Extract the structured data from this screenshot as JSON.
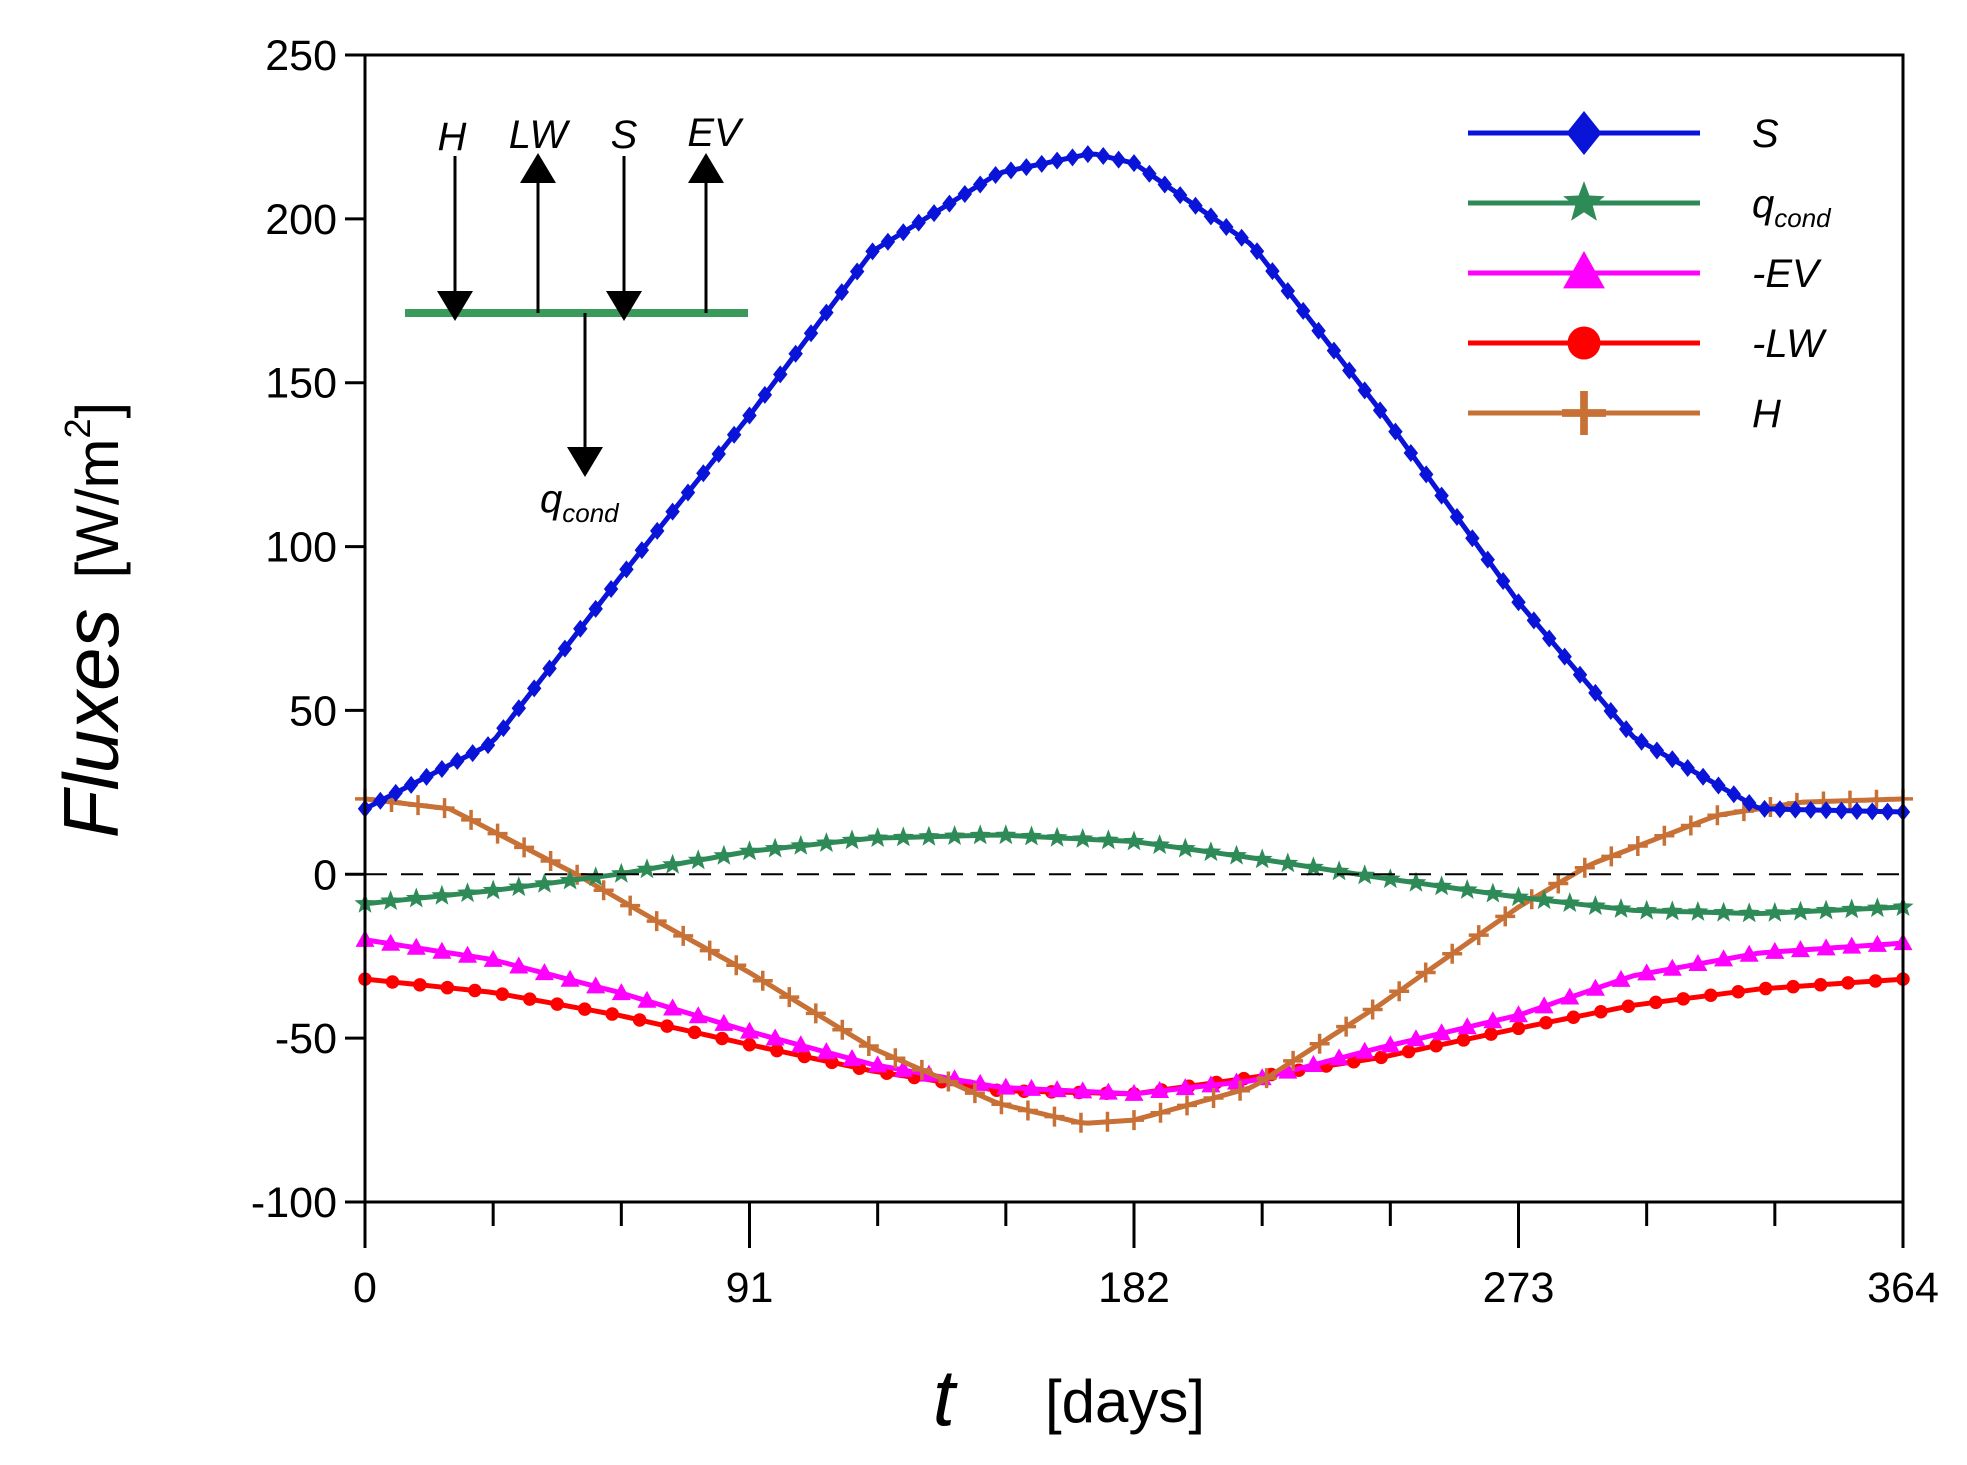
{
  "chart_data": {
    "type": "line",
    "xlabel_var": "t",
    "xlabel_unit": "[days]",
    "ylabel_var": "Fluxes",
    "ylabel_unit_pre": "[W/m",
    "ylabel_unit_sup": "2",
    "ylabel_unit_post": "]",
    "xlim": [
      0,
      364
    ],
    "ylim": [
      -100,
      250
    ],
    "x_tick_labels": [
      "0",
      "91",
      "182",
      "273",
      "364"
    ],
    "y_tick_labels": [
      "-100",
      "-50",
      "0",
      "50",
      "100",
      "150",
      "200",
      "250"
    ],
    "zero_line": "dashed",
    "legend_position": "top-right",
    "series": [
      {
        "key": "S",
        "name": "S",
        "sub": "",
        "color": "#0a14d8",
        "marker": "diamond",
        "x": [
          0,
          30,
          60,
          91,
          120,
          150,
          172,
          182,
          210,
          240,
          273,
          300,
          330,
          364
        ],
        "y": [
          20,
          40,
          90,
          140,
          190,
          214,
          220,
          217,
          192,
          142,
          83,
          42,
          20,
          19
        ]
      },
      {
        "key": "qcond",
        "name": "q",
        "sub": "cond",
        "color": "#2e8b57",
        "marker": "star",
        "x": [
          0,
          30,
          60,
          91,
          120,
          150,
          182,
          210,
          240,
          273,
          300,
          330,
          364
        ],
        "y": [
          -9,
          -5,
          0,
          7,
          11,
          12,
          10,
          5,
          -1,
          -7,
          -11,
          -12,
          -10
        ]
      },
      {
        "key": "EV",
        "name": "-EV",
        "sub": "",
        "color": "#ff00ff",
        "marker": "triangle",
        "x": [
          0,
          30,
          60,
          91,
          120,
          150,
          182,
          210,
          240,
          273,
          300,
          330,
          364
        ],
        "y": [
          -20,
          -26,
          -36,
          -48,
          -58,
          -65,
          -67,
          -63,
          -53,
          -43,
          -31,
          -24,
          -21
        ]
      },
      {
        "key": "LW",
        "name": "-LW",
        "sub": "",
        "color": "#ff0000",
        "marker": "circle",
        "x": [
          0,
          30,
          60,
          91,
          120,
          150,
          182,
          210,
          240,
          273,
          300,
          330,
          364
        ],
        "y": [
          -32,
          -36,
          -43,
          -52,
          -60,
          -66,
          -67,
          -62,
          -56,
          -47,
          -40,
          -35,
          -32
        ]
      },
      {
        "key": "H",
        "name": "H",
        "sub": "",
        "color": "#c87137",
        "marker": "plus",
        "x": [
          0,
          20,
          50,
          70,
          91,
          120,
          150,
          170,
          182,
          210,
          240,
          273,
          290,
          320,
          340,
          364
        ],
        "y": [
          23,
          20,
          0,
          -15,
          -30,
          -53,
          -70,
          -76,
          -75,
          -65,
          -40,
          -10,
          3,
          18,
          22,
          23
        ]
      }
    ],
    "inset": {
      "top_labels": [
        "H",
        "LW",
        "S",
        "EV"
      ],
      "bottom_label": "q",
      "bottom_label_sub": "cond"
    }
  }
}
